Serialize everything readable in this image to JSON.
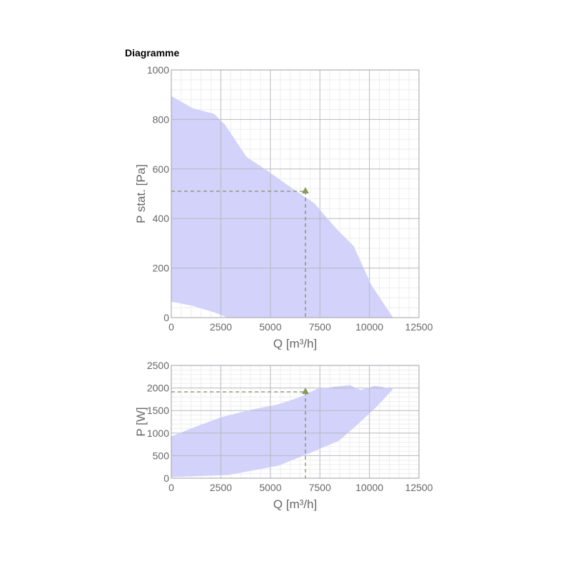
{
  "heading": "Diagramme",
  "chart_data": [
    {
      "type": "area",
      "xlabel": "Q [m³/h]",
      "ylabel": "P stat. [Pa]",
      "xlim": [
        0,
        12500
      ],
      "xticks": [
        0,
        2500,
        5000,
        7500,
        10000,
        12500
      ],
      "ylim": [
        0,
        1000
      ],
      "yticks": [
        0,
        200,
        400,
        600,
        800,
        1000
      ],
      "grid": true,
      "color": "#d2d2fa",
      "series": [
        {
          "x": [
            0,
            1080,
            2160,
            2700,
            3780,
            4860,
            6120,
            7200,
            8290,
            9190,
            10090,
            11170
          ],
          "values": [
            893,
            844,
            821,
            778,
            648,
            591,
            519,
            461,
            360,
            288,
            130,
            0
          ]
        },
        {
          "x": [
            0,
            1080,
            2160,
            2880,
            11170
          ],
          "values": [
            66,
            49,
            23,
            0,
            0
          ]
        }
      ],
      "point": {
        "x": 6770,
        "y": 510,
        "color": "#8a9a5b"
      }
    },
    {
      "type": "area",
      "xlabel": "Q [m³/h]",
      "ylabel": "P [W]",
      "xlim": [
        0,
        12500
      ],
      "xticks": [
        0,
        2500,
        5000,
        7500,
        10000,
        12500
      ],
      "ylim": [
        0,
        2500
      ],
      "yticks": [
        0,
        500,
        1000,
        1500,
        2000,
        2500
      ],
      "grid": true,
      "color": "#d2d2fa",
      "series": [
        {
          "x": [
            0,
            1080,
            2520,
            3960,
            5400,
            6480,
            7380,
            9000,
            9540,
            10260,
            11170
          ],
          "values": [
            918,
            1108,
            1345,
            1503,
            1630,
            1788,
            1978,
            2057,
            1946,
            2041,
            1978
          ]
        },
        {
          "x": [
            0,
            2880,
            5400,
            6840,
            8460,
            9360,
            10260,
            11170
          ],
          "values": [
            32,
            79,
            285,
            538,
            839,
            1187,
            1551,
            1978
          ]
        }
      ],
      "point": {
        "x": 6770,
        "y": 1915,
        "color": "#8a9a5b"
      }
    }
  ]
}
